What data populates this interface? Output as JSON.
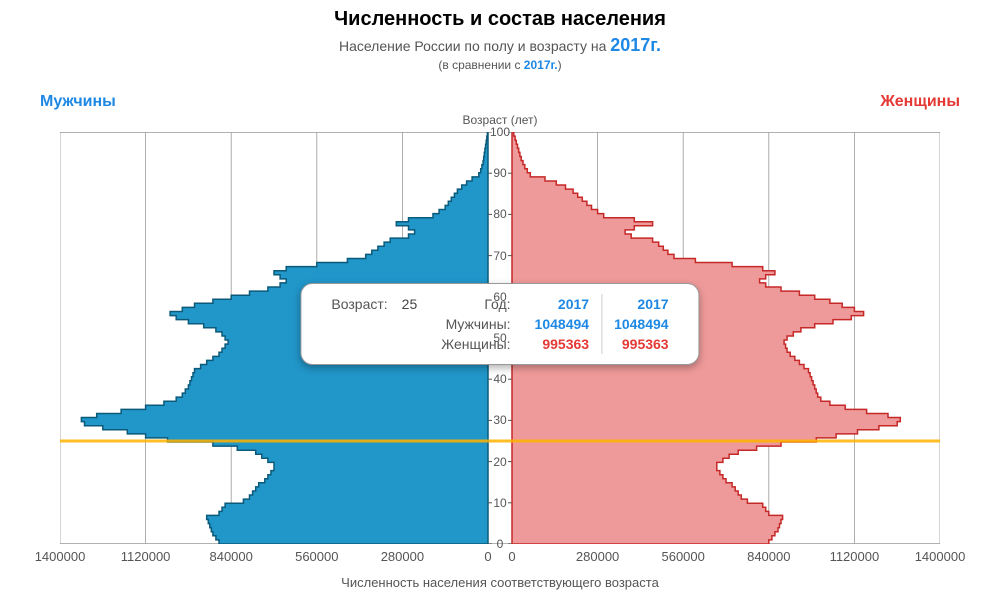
{
  "title": "Численность и состав населения",
  "subtitle_prefix": "Население России по полу и возрасту на ",
  "subtitle_year": "2017г.",
  "compare_prefix": "(в сравнении с ",
  "compare_year": "2017г.",
  "compare_suffix": ")",
  "label_men": "Мужчины",
  "label_women": "Женщины",
  "axis_top_label": "Возраст (лет)",
  "axis_bottom_label": "Численность населения соответствующего возраста",
  "chart": {
    "type": "population-pyramid",
    "x_max": 1400000,
    "x_ticks": [
      1400000,
      1120000,
      840000,
      560000,
      280000,
      0,
      0,
      280000,
      560000,
      840000,
      1120000,
      1400000
    ],
    "y_max": 100,
    "y_ticks": [
      0,
      10,
      20,
      30,
      40,
      50,
      60,
      70,
      80,
      90,
      100
    ],
    "highlight_age": 25,
    "colors": {
      "men_fill": "#2196c9",
      "men_stroke": "#0b5a7a",
      "women_fill": "#ef9a9a",
      "women_stroke": "#c62828",
      "grid": "#999999",
      "highlight": "#ffb300",
      "background": "#ffffff"
    },
    "men": [
      880000,
      890000,
      900000,
      905000,
      910000,
      915000,
      920000,
      880000,
      870000,
      860000,
      800000,
      780000,
      770000,
      760000,
      750000,
      730000,
      720000,
      710000,
      700000,
      700000,
      720000,
      740000,
      760000,
      820000,
      900000,
      1048494,
      1120000,
      1180000,
      1260000,
      1320000,
      1330000,
      1280000,
      1200000,
      1120000,
      1060000,
      1020000,
      1000000,
      990000,
      980000,
      975000,
      970000,
      965000,
      960000,
      940000,
      920000,
      900000,
      880000,
      870000,
      860000,
      850000,
      860000,
      870000,
      890000,
      930000,
      980000,
      1020000,
      1040000,
      1000000,
      960000,
      900000,
      840000,
      780000,
      720000,
      680000,
      660000,
      680000,
      700000,
      660000,
      560000,
      460000,
      400000,
      380000,
      360000,
      340000,
      320000,
      260000,
      240000,
      260000,
      300000,
      260000,
      180000,
      160000,
      140000,
      130000,
      120000,
      110000,
      100000,
      86000,
      70000,
      52000,
      30000,
      24000,
      20000,
      16000,
      14000,
      12000,
      10000,
      8000,
      6000,
      4000,
      2000
    ],
    "women": [
      840000,
      850000,
      860000,
      870000,
      875000,
      880000,
      885000,
      840000,
      830000,
      820000,
      770000,
      750000,
      740000,
      730000,
      720000,
      700000,
      690000,
      680000,
      670000,
      670000,
      690000,
      710000,
      740000,
      800000,
      880000,
      995363,
      1060000,
      1130000,
      1200000,
      1260000,
      1270000,
      1230000,
      1160000,
      1090000,
      1040000,
      1010000,
      1000000,
      995000,
      990000,
      985000,
      980000,
      975000,
      970000,
      955000,
      940000,
      925000,
      910000,
      900000,
      895000,
      890000,
      900000,
      920000,
      945000,
      990000,
      1050000,
      1110000,
      1150000,
      1120000,
      1080000,
      1040000,
      990000,
      940000,
      880000,
      830000,
      810000,
      830000,
      860000,
      820000,
      720000,
      600000,
      530000,
      510000,
      495000,
      480000,
      460000,
      390000,
      370000,
      400000,
      460000,
      400000,
      300000,
      280000,
      260000,
      245000,
      230000,
      215000,
      200000,
      175000,
      145000,
      108000,
      60000,
      50000,
      42000,
      36000,
      30000,
      26000,
      22000,
      18000,
      14000,
      10000,
      6000
    ]
  },
  "tooltip": {
    "age_label": "Возраст:",
    "age_value": "25",
    "year_label": "Год:",
    "year_a": "2017",
    "year_b": "2017",
    "men_label": "Мужчины:",
    "men_a": "1048494",
    "men_b": "1048494",
    "women_label": "Женщины:",
    "women_a": "995363",
    "women_b": "995363"
  }
}
